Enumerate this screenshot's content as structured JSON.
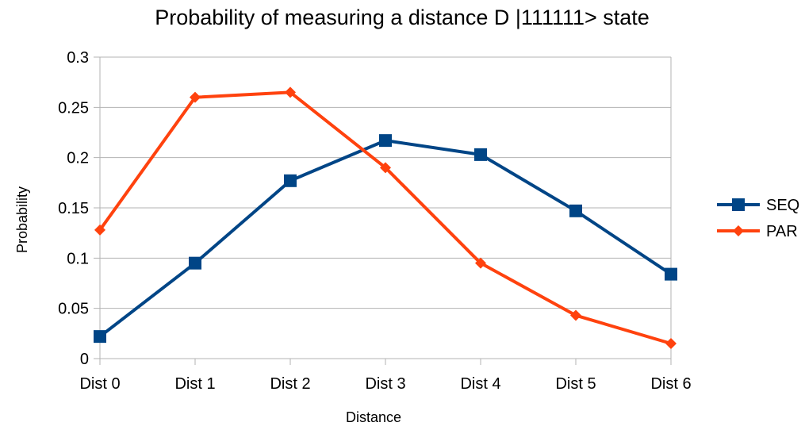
{
  "chart_data": {
    "type": "line",
    "title": "Probability of measuring a distance D |111111> state",
    "xlabel": "Distance",
    "ylabel": "Probability",
    "categories": [
      "Dist 0",
      "Dist 1",
      "Dist 2",
      "Dist 3",
      "Dist 4",
      "Dist 5",
      "Dist 6"
    ],
    "ylim": [
      0,
      0.3
    ],
    "yticks": [
      "0",
      "0.05",
      "0.1",
      "0.15",
      "0.2",
      "0.25",
      "0.3"
    ],
    "ytick_values": [
      0,
      0.05,
      0.1,
      0.15,
      0.2,
      0.25,
      0.3
    ],
    "grid": true,
    "legend_position": "right",
    "series": [
      {
        "name": "SEQ",
        "color": "#004586",
        "marker": "square",
        "values": [
          0.022,
          0.095,
          0.177,
          0.217,
          0.203,
          0.147,
          0.084
        ]
      },
      {
        "name": "PAR",
        "color": "#ff420e",
        "marker": "diamond",
        "values": [
          0.128,
          0.26,
          0.265,
          0.19,
          0.095,
          0.043,
          0.015
        ]
      }
    ]
  }
}
